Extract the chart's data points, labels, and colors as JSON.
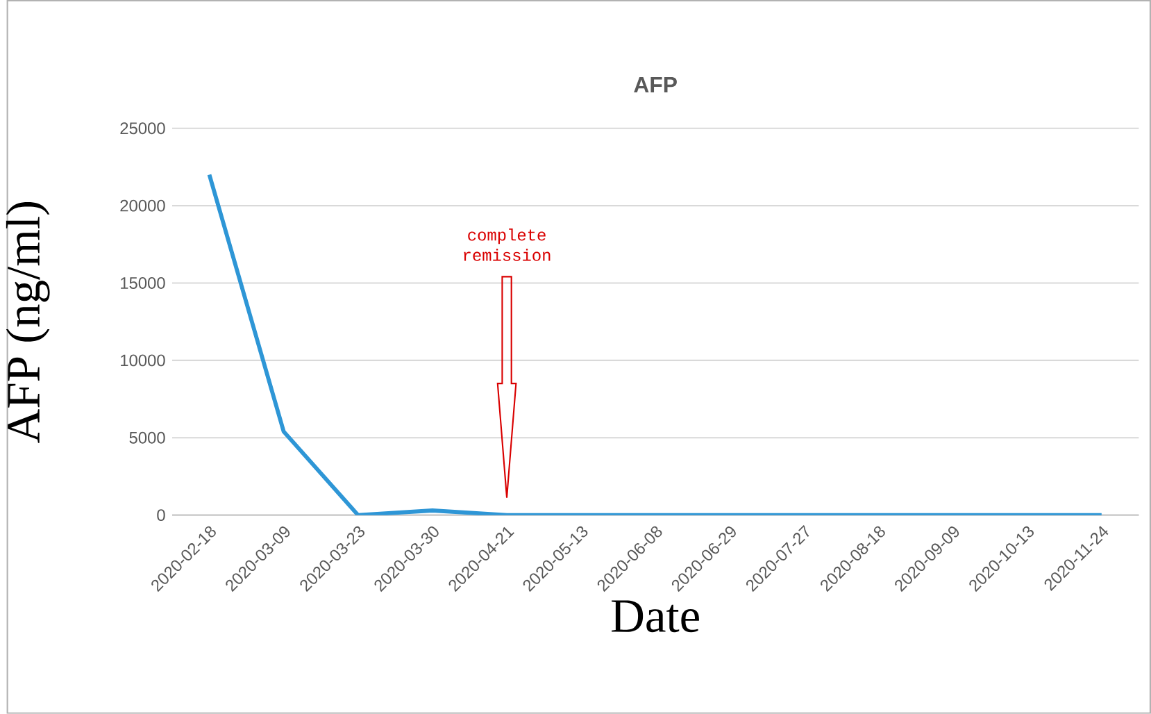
{
  "chart_data": {
    "type": "line",
    "title": "AFP",
    "xlabel": "Date",
    "ylabel": "AFP (ng/ml)",
    "categories": [
      "2020-02-18",
      "2020-03-09",
      "2020-03-23",
      "2020-03-30",
      "2020-04-21",
      "2020-05-13",
      "2020-06-08",
      "2020-06-29",
      "2020-07-27",
      "2020-08-18",
      "2020-09-09",
      "2020-10-13",
      "2020-11-24"
    ],
    "series": [
      {
        "color": "#2e96d6",
        "values": [
          22000,
          5400,
          0,
          300,
          0,
          0,
          0,
          0,
          0,
          0,
          0,
          0,
          0
        ]
      }
    ],
    "ylim": [
      0,
      25000
    ],
    "yticks": [
      0,
      5000,
      10000,
      15000,
      20000,
      25000
    ],
    "grid": "y",
    "marker": "none",
    "line_style": "solid",
    "annotations": [
      "complete remission"
    ]
  }
}
